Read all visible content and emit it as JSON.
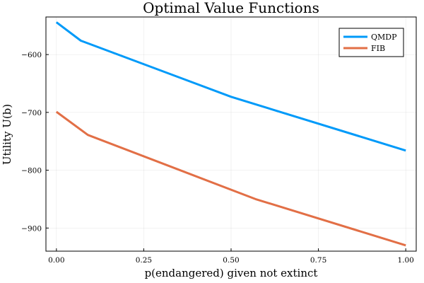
{
  "chart_data": {
    "type": "line",
    "title": "Optimal Value Functions",
    "xlabel": "p(endangered) given not extinct",
    "ylabel": "Utility U(b)",
    "xlim": [
      -0.03,
      1.03
    ],
    "ylim": [
      -940,
      -535
    ],
    "xticks": [
      0,
      0.25,
      0.5,
      0.75,
      1.0
    ],
    "xtick_labels": [
      "0.00",
      "0.25",
      "0.50",
      "0.75",
      "1.00"
    ],
    "yticks": [
      -900,
      -800,
      -700,
      -600
    ],
    "ytick_labels": [
      "−900",
      "−800",
      "−700",
      "−600"
    ],
    "grid": true,
    "legend_position": "top-right",
    "series": [
      {
        "name": "QMDP",
        "color": "#009af9",
        "x": [
          0.0,
          0.07,
          0.5,
          1.0
        ],
        "y": [
          -544,
          -576,
          -673,
          -766
        ]
      },
      {
        "name": "FIB",
        "color": "#e26f46",
        "x": [
          0.0,
          0.09,
          0.57,
          1.0
        ],
        "y": [
          -699,
          -739,
          -850,
          -930
        ]
      }
    ]
  }
}
